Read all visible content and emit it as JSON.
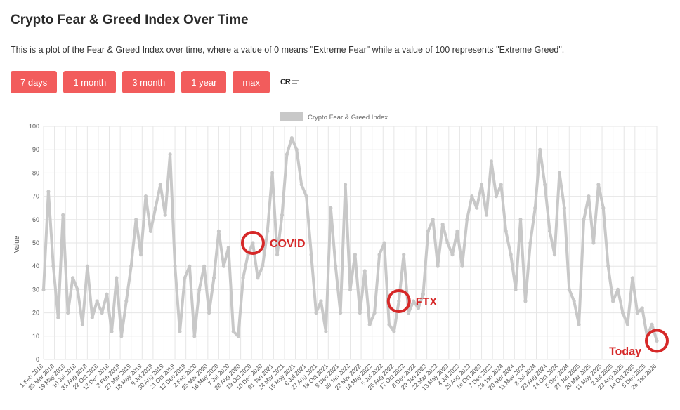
{
  "page": {
    "title": "Crypto Fear & Greed Index Over Time",
    "description": "This is a plot of the Fear & Greed Index over time, where a value of 0 means \"Extreme Fear\" while a value of 100 represents \"Extreme Greed\"."
  },
  "buttons": [
    {
      "label": "7 days"
    },
    {
      "label": "1 month"
    },
    {
      "label": "3 month"
    },
    {
      "label": "1 year"
    },
    {
      "label": "max"
    }
  ],
  "logo": {
    "mark": "CR"
  },
  "colors": {
    "series": "#c8c8c8",
    "annotation": "#d62828",
    "button": "#f25c5c",
    "grid": "#e6e6e6"
  },
  "chart_data": {
    "type": "line",
    "title": "",
    "xlabel": "",
    "ylabel": "Value",
    "ylim": [
      0,
      100
    ],
    "yticks": [
      0,
      10,
      20,
      30,
      40,
      50,
      60,
      70,
      80,
      90,
      100
    ],
    "grid": true,
    "legend": "top-center",
    "x_tick_labels": [
      "1 Feb 2018",
      "25 Mar 2018",
      "19 May 2018",
      "10 Jul 2018",
      "31 Aug 2018",
      "22 Oct 2018",
      "13 Dec 2018",
      "3 Feb 2019",
      "27 Mar 2019",
      "18 May 2019",
      "9 Jul 2019",
      "30 Aug 2019",
      "21 Oct 2019",
      "12 Dec 2019",
      "2 Feb 2020",
      "25 Mar 2020",
      "16 May 2020",
      "7 Jul 2020",
      "28 Aug 2020",
      "19 Oct 2020",
      "10 Dec 2020",
      "31 Jan 2021",
      "24 Mar 2021",
      "15 May 2021",
      "6 Jul 2021",
      "27 Aug 2021",
      "18 Oct 2021",
      "9 Dec 2021",
      "30 Jan 2022",
      "23 Mar 2022",
      "14 May 2022",
      "5 Jul 2022",
      "26 Aug 2022",
      "17 Oct 2022",
      "8 Dec 2022",
      "29 Jan 2023",
      "22 Mar 2023",
      "13 May 2023",
      "4 Jul 2023",
      "25 Aug 2023",
      "16 Oct 2023",
      "7 Dec 2023",
      "28 Jan 2024",
      "20 Mar 2024",
      "11 May 2024",
      "2 Jul 2024",
      "23 Aug 2024",
      "14 Oct 2024",
      "5 Dec 2024",
      "27 Jan 2025",
      "20 Mar 2025",
      "11 May 2025",
      "2 Jul 2025",
      "23 Aug 2025",
      "14 Oct 2025",
      "5 Dec 2025",
      "26 Jan 2026"
    ],
    "series": [
      {
        "name": "Crypto Fear & Greed Index",
        "values": [
          30,
          72,
          40,
          18,
          62,
          20,
          35,
          30,
          15,
          40,
          18,
          25,
          20,
          28,
          12,
          35,
          10,
          25,
          40,
          60,
          45,
          70,
          55,
          65,
          75,
          62,
          88,
          40,
          12,
          35,
          40,
          10,
          30,
          40,
          20,
          35,
          55,
          40,
          48,
          12,
          10,
          35,
          45,
          50,
          35,
          40,
          55,
          80,
          45,
          62,
          88,
          95,
          90,
          75,
          70,
          45,
          20,
          25,
          12,
          65,
          40,
          20,
          75,
          30,
          45,
          20,
          38,
          15,
          20,
          45,
          50,
          15,
          12,
          25,
          45,
          20,
          25,
          22,
          28,
          55,
          60,
          40,
          58,
          50,
          45,
          55,
          40,
          60,
          70,
          65,
          75,
          62,
          85,
          70,
          75,
          55,
          45,
          30,
          60,
          25,
          50,
          65,
          90,
          75,
          55,
          45,
          80,
          65,
          30,
          25,
          15,
          60,
          70,
          50,
          75,
          65,
          40,
          25,
          30,
          20,
          15,
          35,
          20,
          22,
          10,
          15,
          8
        ]
      }
    ],
    "annotations": [
      {
        "label": "COVID",
        "x_index": 43
      },
      {
        "label": "FTX",
        "x_index": 73
      },
      {
        "label": "Today",
        "x_index": 126
      }
    ]
  }
}
